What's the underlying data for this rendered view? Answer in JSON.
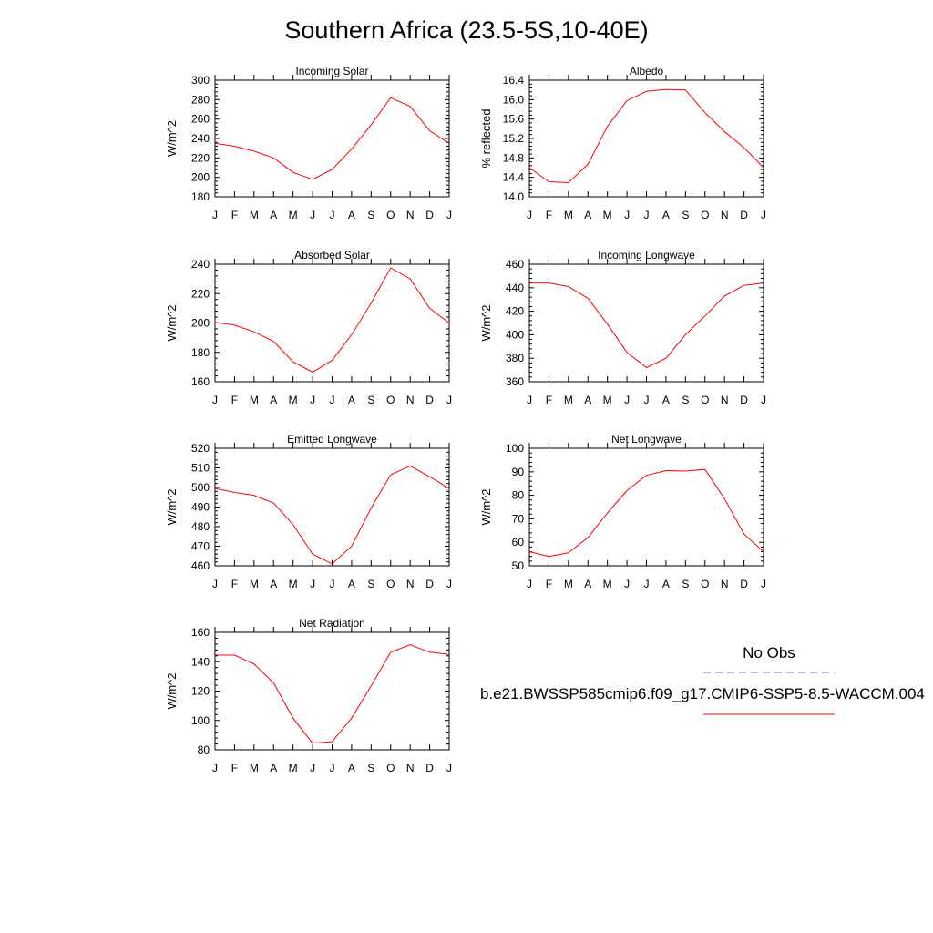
{
  "title": "Southern Africa (23.5-5S,10-40E)",
  "legend": {
    "obs_label": "No Obs",
    "model_label": "b.e21.BWSSP585cmip6.f09_g17.CMIP6-SSP5-8.5-WACCM.004",
    "obs_color": "#6a6ae0",
    "model_color": "#ff0000"
  },
  "chart_data": [
    {
      "type": "line",
      "title": "Incoming Solar",
      "ylabel": "W/m^2",
      "xlabel": "",
      "categories": [
        "J",
        "F",
        "M",
        "A",
        "M",
        "J",
        "J",
        "A",
        "S",
        "O",
        "N",
        "D",
        "J"
      ],
      "ylim": [
        180,
        300
      ],
      "yticks": [
        180,
        200,
        220,
        240,
        260,
        280,
        300
      ],
      "tick_labels": [
        "180",
        "200",
        "220",
        "240",
        "260",
        "280",
        "300"
      ],
      "series": [
        {
          "values": [
            235,
            232,
            227,
            220,
            205,
            198,
            208,
            229,
            254,
            282,
            273,
            248,
            235
          ]
        }
      ]
    },
    {
      "type": "line",
      "title": "Albedo",
      "ylabel": "% reflected",
      "xlabel": "",
      "categories": [
        "J",
        "F",
        "M",
        "A",
        "M",
        "J",
        "J",
        "A",
        "S",
        "O",
        "N",
        "D",
        "J"
      ],
      "ylim": [
        14.0,
        16.4
      ],
      "yticks": [
        14.0,
        14.4,
        14.8,
        15.2,
        15.6,
        16.0,
        16.4
      ],
      "tick_labels": [
        "14.0",
        "14.4",
        "14.8",
        "15.2",
        "15.6",
        "16.0",
        "16.4"
      ],
      "series": [
        {
          "values": [
            14.6,
            14.31,
            14.29,
            14.67,
            15.45,
            15.98,
            16.17,
            16.21,
            16.2,
            15.73,
            15.34,
            15.01,
            14.6
          ]
        }
      ]
    },
    {
      "type": "line",
      "title": "Absorbed Solar",
      "ylabel": "W/m^2",
      "xlabel": "",
      "categories": [
        "J",
        "F",
        "M",
        "A",
        "M",
        "J",
        "J",
        "A",
        "S",
        "O",
        "N",
        "D",
        "J"
      ],
      "ylim": [
        160,
        240
      ],
      "yticks": [
        160,
        180,
        200,
        220,
        240
      ],
      "tick_labels": [
        "160",
        "180",
        "200",
        "220",
        "240"
      ],
      "series": [
        {
          "values": [
            200.5,
            198.5,
            194,
            187.5,
            173.5,
            166.5,
            174.5,
            192,
            213.5,
            237.5,
            230,
            210,
            200
          ]
        }
      ]
    },
    {
      "type": "line",
      "title": "Incoming Longwave",
      "ylabel": "W/m^2",
      "xlabel": "",
      "categories": [
        "J",
        "F",
        "M",
        "A",
        "M",
        "J",
        "J",
        "A",
        "S",
        "O",
        "N",
        "D",
        "J"
      ],
      "ylim": [
        360,
        460
      ],
      "yticks": [
        360,
        380,
        400,
        420,
        440,
        460
      ],
      "tick_labels": [
        "360",
        "380",
        "400",
        "420",
        "440",
        "460"
      ],
      "series": [
        {
          "values": [
            444,
            444,
            441,
            431,
            409,
            385,
            372,
            380,
            400,
            416,
            433,
            442,
            444
          ]
        }
      ]
    },
    {
      "type": "line",
      "title": "Emitted Longwave",
      "ylabel": "W/m^2",
      "xlabel": "",
      "categories": [
        "J",
        "F",
        "M",
        "A",
        "M",
        "J",
        "J",
        "A",
        "S",
        "O",
        "N",
        "D",
        "J"
      ],
      "ylim": [
        460,
        520
      ],
      "yticks": [
        460,
        470,
        480,
        490,
        500,
        510,
        520
      ],
      "tick_labels": [
        "460",
        "470",
        "480",
        "490",
        "500",
        "510",
        "520"
      ],
      "series": [
        {
          "values": [
            499.5,
            497.5,
            496,
            492,
            481,
            466,
            461,
            470,
            489.5,
            506.5,
            511,
            505.5,
            499.5
          ]
        }
      ]
    },
    {
      "type": "line",
      "title": "Net Longwave",
      "ylabel": "W/m^2",
      "xlabel": "",
      "categories": [
        "J",
        "F",
        "M",
        "A",
        "M",
        "J",
        "J",
        "A",
        "S",
        "O",
        "N",
        "D",
        "J"
      ],
      "ylim": [
        50,
        100
      ],
      "yticks": [
        50,
        60,
        70,
        80,
        90,
        100
      ],
      "tick_labels": [
        "50",
        "60",
        "70",
        "80",
        "90",
        "100"
      ],
      "series": [
        {
          "values": [
            56,
            54,
            55.5,
            62,
            72.5,
            82,
            88.5,
            90.5,
            90.3,
            91,
            78.5,
            63.5,
            56
          ]
        }
      ]
    },
    {
      "type": "line",
      "title": "Net Radiation",
      "ylabel": "W/m^2",
      "xlabel": "",
      "categories": [
        "J",
        "F",
        "M",
        "A",
        "M",
        "J",
        "J",
        "A",
        "S",
        "O",
        "N",
        "D",
        "J"
      ],
      "ylim": [
        80,
        160
      ],
      "yticks": [
        80,
        100,
        120,
        140,
        160
      ],
      "tick_labels": [
        "80",
        "100",
        "120",
        "140",
        "160"
      ],
      "series": [
        {
          "values": [
            144.5,
            144.5,
            138.5,
            125.5,
            101.5,
            84.5,
            85.5,
            101.5,
            123.5,
            146.5,
            151.5,
            146.5,
            145
          ]
        }
      ]
    }
  ]
}
